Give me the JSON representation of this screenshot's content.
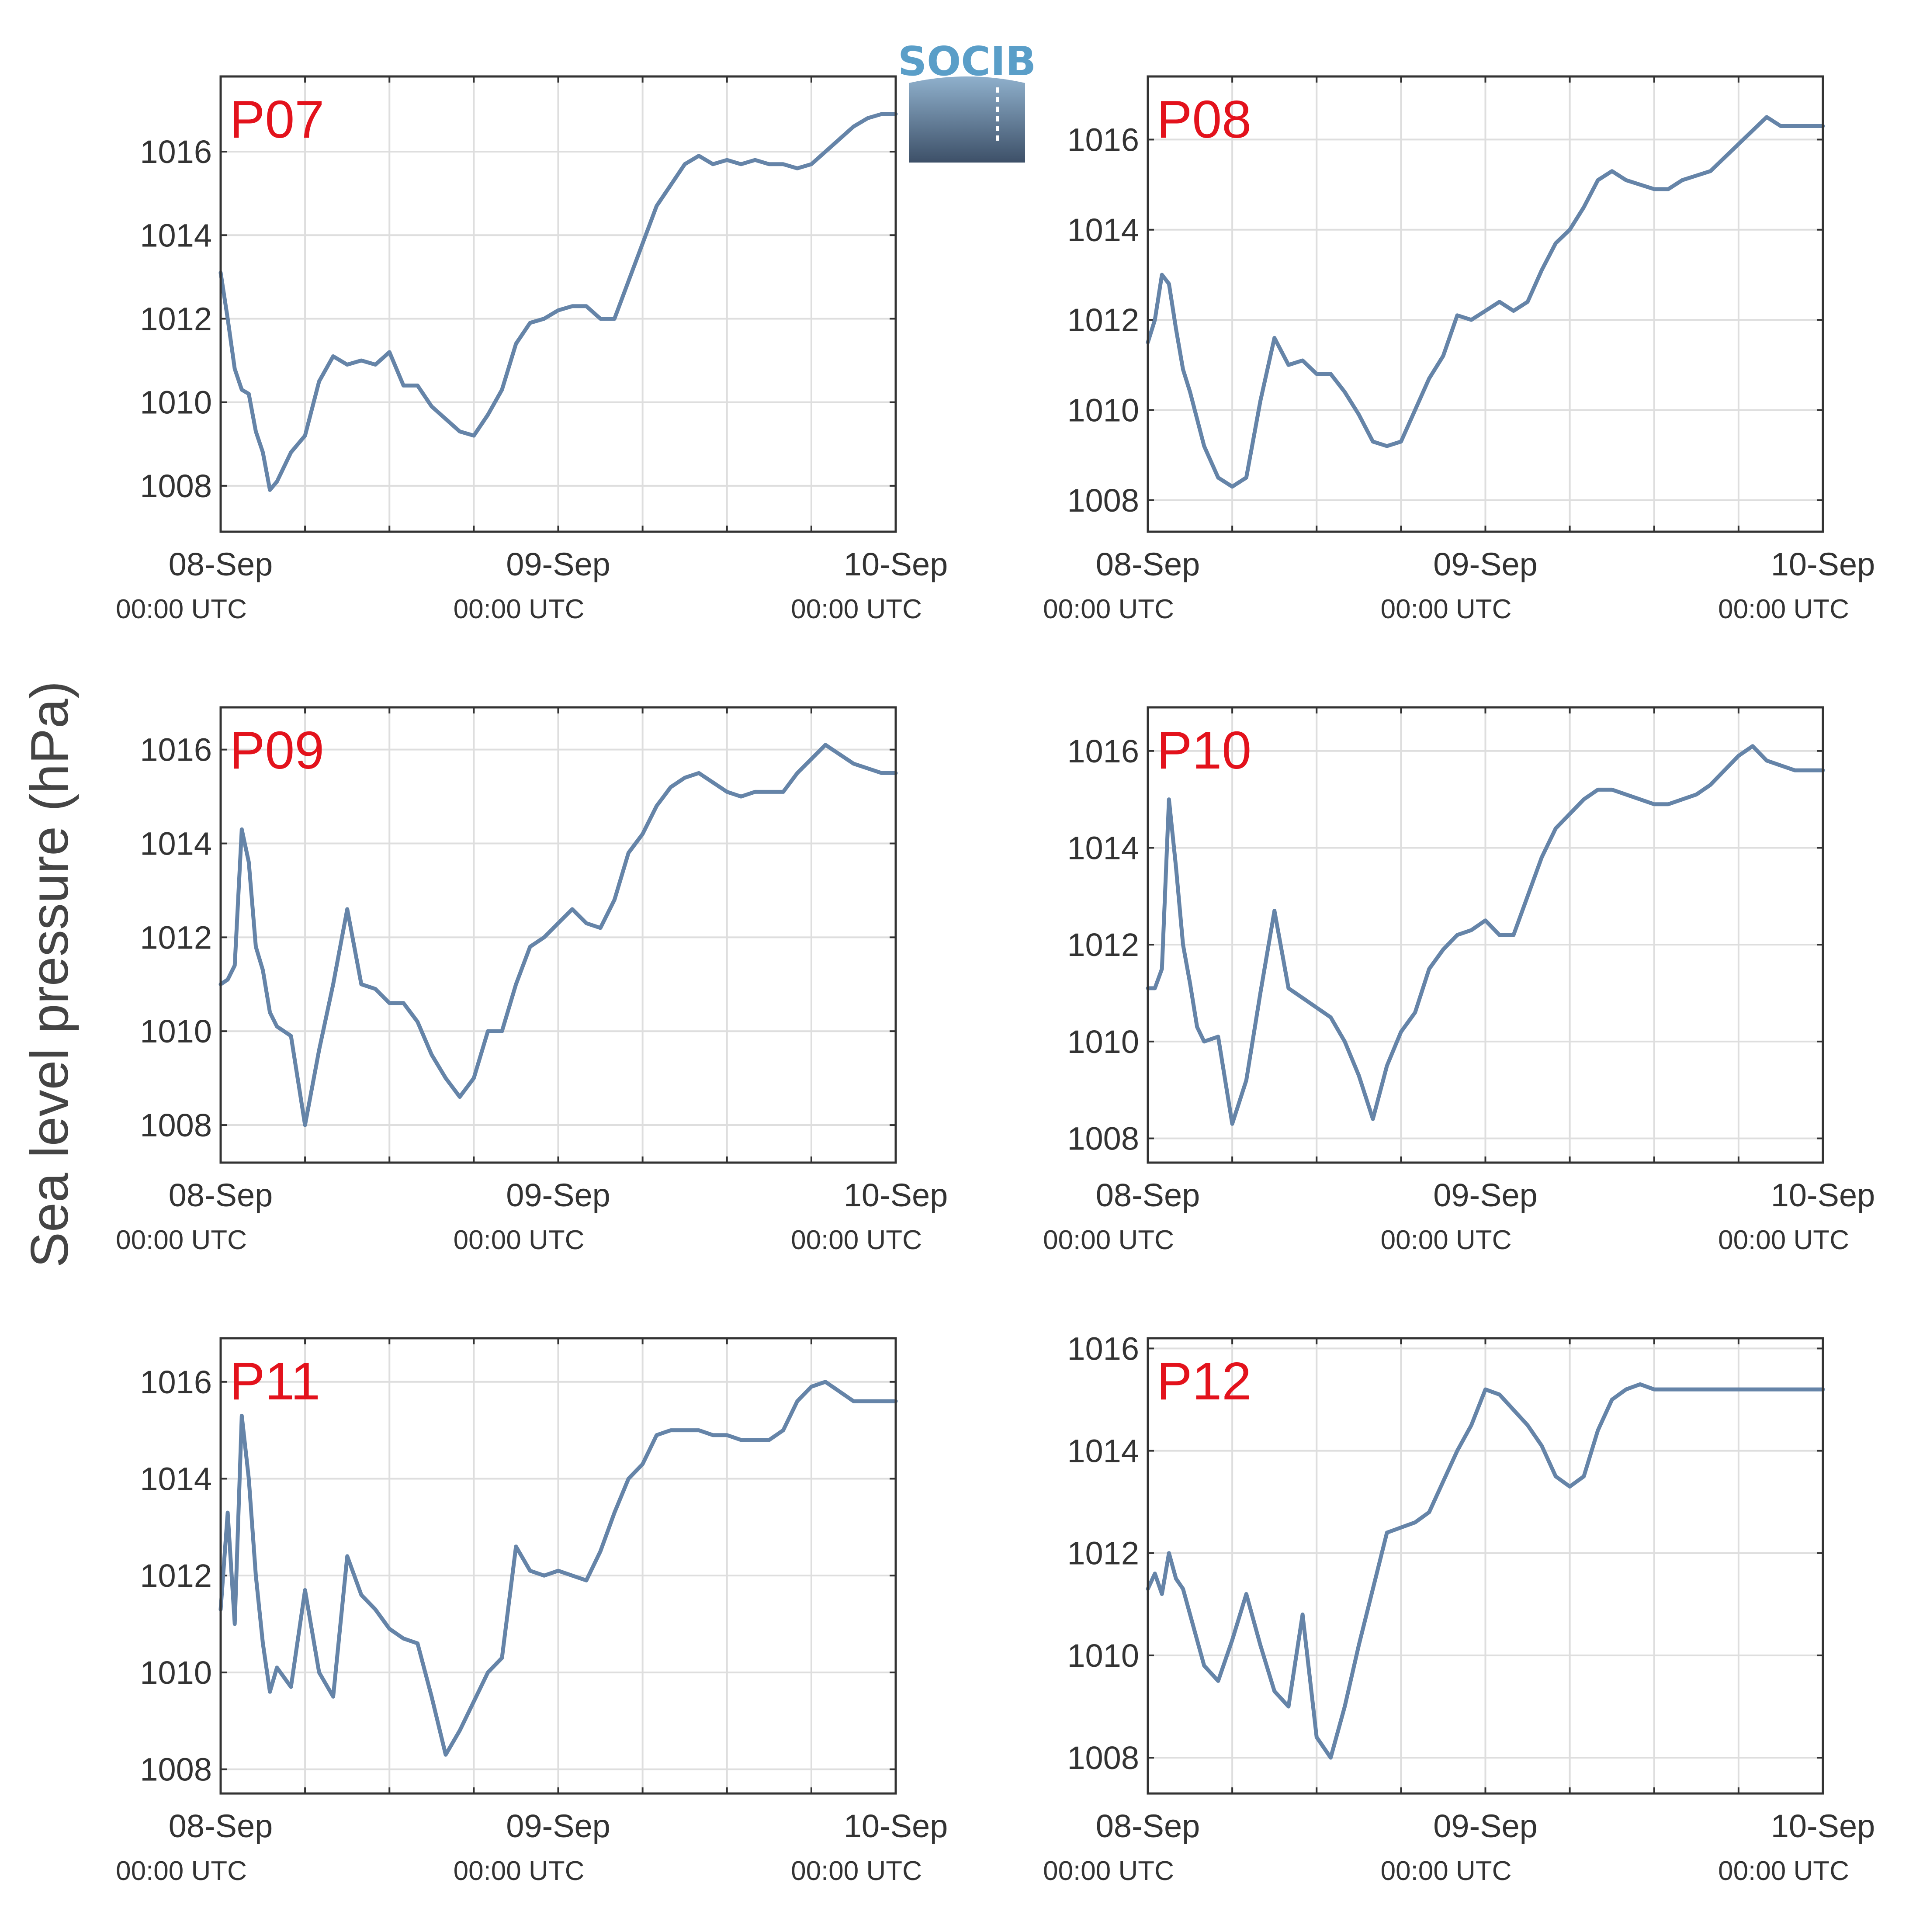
{
  "logo": {
    "text": "SOCIB"
  },
  "ylabel": "Sea level pressure (hPa)",
  "time_sublabel": "00:00 UTC",
  "colors": {
    "line": "#6584a8",
    "station_label": "#e3121c",
    "grid": "#dedede",
    "axis": "#333333",
    "logo_text": "#5a9ec8",
    "logo_top": "#8fb0cc",
    "logo_bottom": "#3d5068"
  },
  "chart_data": [
    {
      "type": "line",
      "title": "P07",
      "xlabel": "",
      "ylabel": "Sea level pressure (hPa)",
      "xlim": [
        "2023-09-08T00:00",
        "2023-09-10T00:00"
      ],
      "x_ticks": [
        "08-Sep",
        "09-Sep",
        "10-Sep"
      ],
      "ylim": [
        1006.9,
        1017.8
      ],
      "y_ticks": [
        1008,
        1010,
        1012,
        1014,
        1016
      ],
      "grid": true,
      "x_hours": [
        0,
        0.5,
        1,
        1.5,
        2,
        2.5,
        3,
        3.5,
        4,
        5,
        6,
        7,
        8,
        9,
        10,
        11,
        12,
        13,
        14,
        15,
        16,
        17,
        18,
        19,
        20,
        21,
        22,
        23,
        24,
        25,
        26,
        27,
        28,
        29,
        30,
        31,
        32,
        33,
        34,
        35,
        36,
        37,
        38,
        39,
        40,
        41,
        42,
        43,
        44,
        45,
        46,
        47,
        48
      ],
      "values": [
        1013.1,
        1012.0,
        1010.8,
        1010.3,
        1010.2,
        1009.3,
        1008.8,
        1007.9,
        1008.1,
        1008.8,
        1009.2,
        1010.5,
        1011.1,
        1010.9,
        1011.0,
        1010.9,
        1011.2,
        1010.4,
        1010.4,
        1009.9,
        1009.6,
        1009.3,
        1009.2,
        1009.7,
        1010.3,
        1011.4,
        1011.9,
        1012.0,
        1012.2,
        1012.3,
        1012.3,
        1012.0,
        1012.0,
        1012.9,
        1013.8,
        1014.7,
        1015.2,
        1015.7,
        1015.9,
        1015.7,
        1015.8,
        1015.7,
        1015.8,
        1015.7,
        1015.7,
        1015.6,
        1015.7,
        1016.0,
        1016.3,
        1016.6,
        1016.8,
        1016.9,
        1016.9
      ]
    },
    {
      "type": "line",
      "title": "P08",
      "xlabel": "",
      "ylabel": "Sea level pressure (hPa)",
      "xlim": [
        "2023-09-08T00:00",
        "2023-09-10T00:00"
      ],
      "x_ticks": [
        "08-Sep",
        "09-Sep",
        "10-Sep"
      ],
      "ylim": [
        1007.3,
        1017.4
      ],
      "y_ticks": [
        1008,
        1010,
        1012,
        1014,
        1016
      ],
      "grid": true,
      "x_hours": [
        0,
        0.5,
        1,
        1.5,
        2,
        2.5,
        3,
        3.5,
        4,
        5,
        6,
        7,
        8,
        9,
        10,
        11,
        12,
        13,
        14,
        15,
        16,
        17,
        18,
        19,
        20,
        21,
        22,
        23,
        24,
        25,
        26,
        27,
        28,
        29,
        30,
        31,
        32,
        33,
        34,
        35,
        36,
        37,
        38,
        39,
        40,
        41,
        42,
        43,
        44,
        45,
        46,
        47,
        48
      ],
      "values": [
        1011.5,
        1012.0,
        1013.0,
        1012.8,
        1011.8,
        1010.9,
        1010.4,
        1009.8,
        1009.2,
        1008.5,
        1008.3,
        1008.5,
        1010.2,
        1011.6,
        1011.0,
        1011.1,
        1010.8,
        1010.8,
        1010.4,
        1009.9,
        1009.3,
        1009.2,
        1009.3,
        1010.0,
        1010.7,
        1011.2,
        1012.1,
        1012.0,
        1012.2,
        1012.4,
        1012.2,
        1012.4,
        1013.1,
        1013.7,
        1014.0,
        1014.5,
        1015.1,
        1015.3,
        1015.1,
        1015.0,
        1014.9,
        1014.9,
        1015.1,
        1015.2,
        1015.3,
        1015.6,
        1015.9,
        1016.2,
        1016.5,
        1016.3,
        1016.3,
        1016.3,
        1016.3
      ]
    },
    {
      "type": "line",
      "title": "P09",
      "xlabel": "",
      "ylabel": "Sea level pressure (hPa)",
      "xlim": [
        "2023-09-08T00:00",
        "2023-09-10T00:00"
      ],
      "x_ticks": [
        "08-Sep",
        "09-Sep",
        "10-Sep"
      ],
      "ylim": [
        1007.2,
        1016.9
      ],
      "y_ticks": [
        1008,
        1010,
        1012,
        1014,
        1016
      ],
      "grid": true,
      "x_hours": [
        0,
        0.5,
        1,
        1.5,
        2,
        2.5,
        3,
        3.5,
        4,
        5,
        6,
        7,
        8,
        9,
        10,
        11,
        12,
        13,
        14,
        15,
        16,
        17,
        18,
        19,
        20,
        21,
        22,
        23,
        24,
        25,
        26,
        27,
        28,
        29,
        30,
        31,
        32,
        33,
        34,
        35,
        36,
        37,
        38,
        39,
        40,
        41,
        42,
        43,
        44,
        45,
        46,
        47,
        48
      ],
      "values": [
        1011.0,
        1011.1,
        1011.4,
        1014.3,
        1013.6,
        1011.8,
        1011.3,
        1010.4,
        1010.1,
        1009.9,
        1008.0,
        1009.6,
        1011.0,
        1012.6,
        1011.0,
        1010.9,
        1010.6,
        1010.6,
        1010.2,
        1009.5,
        1009.0,
        1008.6,
        1009.0,
        1010.0,
        1010.0,
        1011.0,
        1011.8,
        1012.0,
        1012.3,
        1012.6,
        1012.3,
        1012.2,
        1012.8,
        1013.8,
        1014.2,
        1014.8,
        1015.2,
        1015.4,
        1015.5,
        1015.3,
        1015.1,
        1015.0,
        1015.1,
        1015.1,
        1015.1,
        1015.5,
        1015.8,
        1016.1,
        1015.9,
        1015.7,
        1015.6,
        1015.5,
        1015.5
      ]
    },
    {
      "type": "line",
      "title": "P10",
      "xlabel": "",
      "ylabel": "Sea level pressure (hPa)",
      "xlim": [
        "2023-09-08T00:00",
        "2023-09-10T00:00"
      ],
      "x_ticks": [
        "08-Sep",
        "09-Sep",
        "10-Sep"
      ],
      "ylim": [
        1007.5,
        1016.9
      ],
      "y_ticks": [
        1008,
        1010,
        1012,
        1014,
        1016
      ],
      "grid": true,
      "x_hours": [
        0,
        0.5,
        1,
        1.5,
        2,
        2.5,
        3,
        3.5,
        4,
        5,
        6,
        7,
        8,
        9,
        10,
        11,
        12,
        13,
        14,
        15,
        16,
        17,
        18,
        19,
        20,
        21,
        22,
        23,
        24,
        25,
        26,
        27,
        28,
        29,
        30,
        31,
        32,
        33,
        34,
        35,
        36,
        37,
        38,
        39,
        40,
        41,
        42,
        43,
        44,
        45,
        46,
        47,
        48
      ],
      "values": [
        1011.1,
        1011.1,
        1011.5,
        1015.0,
        1013.6,
        1012.0,
        1011.2,
        1010.3,
        1010.0,
        1010.1,
        1008.3,
        1009.2,
        1011.0,
        1012.7,
        1011.1,
        1010.9,
        1010.7,
        1010.5,
        1010.0,
        1009.3,
        1008.4,
        1009.5,
        1010.2,
        1010.6,
        1011.5,
        1011.9,
        1012.2,
        1012.3,
        1012.5,
        1012.2,
        1012.2,
        1013.0,
        1013.8,
        1014.4,
        1014.7,
        1015.0,
        1015.2,
        1015.2,
        1015.1,
        1015.0,
        1014.9,
        1014.9,
        1015.0,
        1015.1,
        1015.3,
        1015.6,
        1015.9,
        1016.1,
        1015.8,
        1015.7,
        1015.6,
        1015.6,
        1015.6
      ]
    },
    {
      "type": "line",
      "title": "P11",
      "xlabel": "",
      "ylabel": "Sea level pressure (hPa)",
      "xlim": [
        "2023-09-08T00:00",
        "2023-09-10T00:00"
      ],
      "x_ticks": [
        "08-Sep",
        "09-Sep",
        "10-Sep"
      ],
      "ylim": [
        1007.5,
        1016.9
      ],
      "y_ticks": [
        1008,
        1010,
        1012,
        1014,
        1016
      ],
      "grid": true,
      "x_hours": [
        0,
        0.5,
        1,
        1.5,
        2,
        2.5,
        3,
        3.5,
        4,
        5,
        6,
        7,
        8,
        9,
        10,
        11,
        12,
        13,
        14,
        15,
        16,
        17,
        18,
        19,
        20,
        21,
        22,
        23,
        24,
        25,
        26,
        27,
        28,
        29,
        30,
        31,
        32,
        33,
        34,
        35,
        36,
        37,
        38,
        39,
        40,
        41,
        42,
        43,
        44,
        45,
        46,
        47,
        48
      ],
      "values": [
        1011.3,
        1013.3,
        1011.0,
        1015.3,
        1014.0,
        1012.0,
        1010.6,
        1009.6,
        1010.1,
        1009.7,
        1011.7,
        1010.0,
        1009.5,
        1012.4,
        1011.6,
        1011.3,
        1010.9,
        1010.7,
        1010.6,
        1009.5,
        1008.3,
        1008.8,
        1009.4,
        1010.0,
        1010.3,
        1012.6,
        1012.1,
        1012.0,
        1012.1,
        1012.0,
        1011.9,
        1012.5,
        1013.3,
        1014.0,
        1014.3,
        1014.9,
        1015.0,
        1015.0,
        1015.0,
        1014.9,
        1014.9,
        1014.8,
        1014.8,
        1014.8,
        1015.0,
        1015.6,
        1015.9,
        1016.0,
        1015.8,
        1015.6,
        1015.6,
        1015.6,
        1015.6
      ]
    },
    {
      "type": "line",
      "title": "P12",
      "xlabel": "",
      "ylabel": "Sea level pressure (hPa)",
      "xlim": [
        "2023-09-08T00:00",
        "2023-09-10T00:00"
      ],
      "x_ticks": [
        "08-Sep",
        "09-Sep",
        "10-Sep"
      ],
      "ylim": [
        1007.3,
        1016.2
      ],
      "y_ticks": [
        1008,
        1010,
        1012,
        1014,
        1016
      ],
      "grid": true,
      "x_hours": [
        0,
        0.5,
        1,
        1.5,
        2,
        2.5,
        3,
        3.5,
        4,
        5,
        6,
        7,
        8,
        9,
        10,
        11,
        12,
        13,
        14,
        15,
        16,
        17,
        18,
        19,
        20,
        21,
        22,
        23,
        24,
        25,
        26,
        27,
        28,
        29,
        30,
        31,
        32,
        33,
        34,
        35,
        36,
        37,
        38,
        39,
        40,
        41,
        42,
        43,
        44,
        45,
        46,
        47,
        48
      ],
      "values": [
        1011.3,
        1011.6,
        1011.2,
        1012.0,
        1011.5,
        1011.3,
        1010.8,
        1010.3,
        1009.8,
        1009.5,
        1010.3,
        1011.2,
        1010.2,
        1009.3,
        1009.0,
        1010.8,
        1008.4,
        1008.0,
        1009.0,
        1010.2,
        1011.3,
        1012.4,
        1012.5,
        1012.6,
        1012.8,
        1013.4,
        1014.0,
        1014.5,
        1015.2,
        1015.1,
        1014.8,
        1014.5,
        1014.1,
        1013.5,
        1013.3,
        1013.5,
        1014.4,
        1015.0,
        1015.2,
        1015.3,
        1015.2,
        1015.2,
        1015.2,
        1015.2,
        1015.2,
        1015.2,
        1015.2,
        1015.2,
        1015.2,
        1015.2,
        1015.2,
        1015.2,
        1015.2
      ]
    }
  ]
}
